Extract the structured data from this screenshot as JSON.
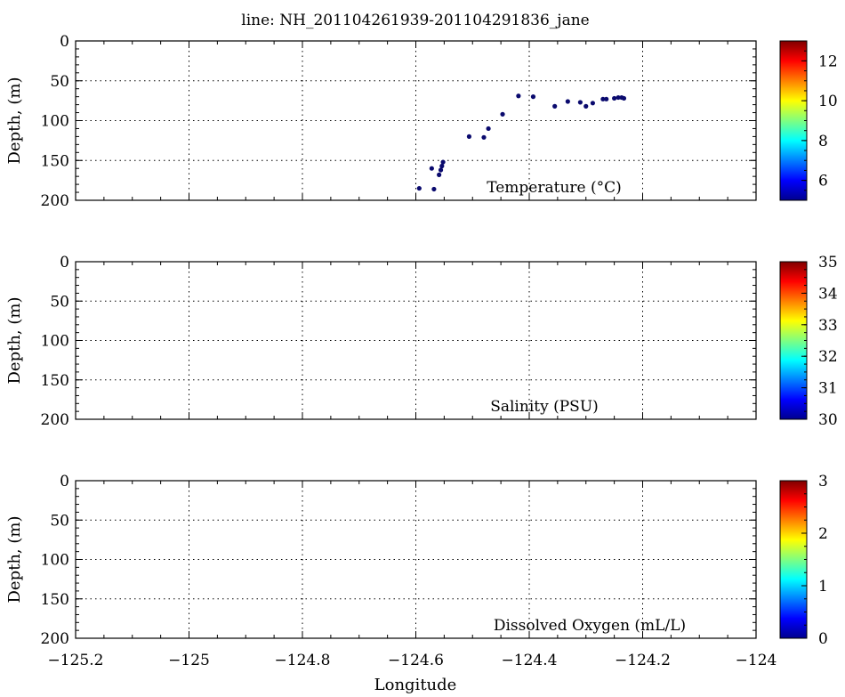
{
  "chart_data": {
    "title": "line: NH_201104261939-201104291836_jane",
    "xlabel": "Longitude",
    "xlim": [
      -125.2,
      -124.0
    ],
    "x_ticks": [
      "-125.2",
      "-125",
      "-124.8",
      "-124.6",
      "-124.4",
      "-124.2",
      "-124"
    ],
    "x_tick_values": [
      -125.2,
      -125.0,
      -124.8,
      -124.6,
      -124.4,
      -124.2,
      -124.0
    ],
    "panels": [
      {
        "type": "scatter",
        "variable_label": "Temperature (°C)",
        "ylabel": "Depth, (m)",
        "ylim": [
          0,
          200
        ],
        "y_inverted": true,
        "y_ticks": [
          "0",
          "50",
          "100",
          "150",
          "200"
        ],
        "grid": true,
        "colorbar": {
          "min": 5,
          "max": 13,
          "ticks": [
            "6",
            "8",
            "10",
            "12"
          ],
          "tick_values": [
            6,
            8,
            10,
            12
          ]
        },
        "points": [
          {
            "x": -124.594,
            "y": 185
          },
          {
            "x": -124.568,
            "y": 186
          },
          {
            "x": -124.572,
            "y": 160
          },
          {
            "x": -124.559,
            "y": 168
          },
          {
            "x": -124.556,
            "y": 162
          },
          {
            "x": -124.554,
            "y": 157
          },
          {
            "x": -124.552,
            "y": 152
          },
          {
            "x": -124.506,
            "y": 120
          },
          {
            "x": -124.48,
            "y": 121
          },
          {
            "x": -124.472,
            "y": 110
          },
          {
            "x": -124.447,
            "y": 92
          },
          {
            "x": -124.419,
            "y": 69
          },
          {
            "x": -124.393,
            "y": 70
          },
          {
            "x": -124.355,
            "y": 82
          },
          {
            "x": -124.332,
            "y": 76
          },
          {
            "x": -124.31,
            "y": 77
          },
          {
            "x": -124.3,
            "y": 82
          },
          {
            "x": -124.288,
            "y": 78
          },
          {
            "x": -124.27,
            "y": 73
          },
          {
            "x": -124.264,
            "y": 73
          },
          {
            "x": -124.25,
            "y": 72
          },
          {
            "x": -124.243,
            "y": 71
          },
          {
            "x": -124.237,
            "y": 71
          },
          {
            "x": -124.233,
            "y": 72
          }
        ]
      },
      {
        "type": "scatter",
        "variable_label": "Salinity (PSU)",
        "ylabel": "Depth, (m)",
        "ylim": [
          0,
          200
        ],
        "y_inverted": true,
        "y_ticks": [
          "0",
          "50",
          "100",
          "150",
          "200"
        ],
        "grid": true,
        "colorbar": {
          "min": 30,
          "max": 35,
          "ticks": [
            "30",
            "31",
            "32",
            "33",
            "34",
            "35"
          ],
          "tick_values": [
            30,
            31,
            32,
            33,
            34,
            35
          ]
        },
        "points": []
      },
      {
        "type": "scatter",
        "variable_label": "Dissolved Oxygen (mL/L)",
        "ylabel": "Depth, (m)",
        "ylim": [
          0,
          200
        ],
        "y_inverted": true,
        "y_ticks": [
          "0",
          "50",
          "100",
          "150",
          "200"
        ],
        "grid": true,
        "colorbar": {
          "min": 0,
          "max": 3,
          "ticks": [
            "0",
            "1",
            "2",
            "3"
          ],
          "tick_values": [
            0,
            1,
            2,
            3
          ]
        },
        "points": []
      }
    ],
    "colors": {
      "point": "#0a0a6e",
      "grid": "#000000"
    },
    "colormap": "jet"
  }
}
